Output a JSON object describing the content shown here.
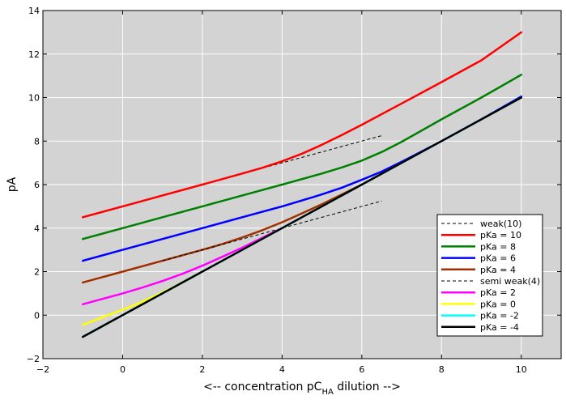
{
  "chart_data": {
    "type": "line",
    "title": "",
    "xlabel_parts": [
      "<-- concentration    pC",
      "HA",
      "   dilution -->"
    ],
    "ylabel": "pA",
    "xlim": [
      -2,
      11
    ],
    "ylim": [
      -2,
      14
    ],
    "xticks": [
      -2,
      0,
      2,
      4,
      6,
      8,
      10
    ],
    "yticks": [
      -2,
      0,
      2,
      4,
      6,
      8,
      10,
      12,
      14
    ],
    "grid": true,
    "legend_position": "lower-right",
    "colors": {
      "plot_background": "#d3d3d3",
      "grid": "#ffffff"
    },
    "series": [
      {
        "name": "weak(10)",
        "color": "#000000",
        "dashed": true,
        "width": 1,
        "x": [
          -1,
          6.5
        ],
        "y": [
          4.5,
          8.25
        ]
      },
      {
        "name": "pKa = 10",
        "color": "#ff0000",
        "dashed": false,
        "width": 2.5,
        "x": [
          -1,
          0,
          1,
          2,
          3,
          3.5,
          4,
          4.5,
          5,
          5.5,
          6,
          7,
          8,
          9,
          10
        ],
        "y": [
          4.5,
          5.0,
          5.5,
          6.0,
          6.51,
          6.77,
          7.07,
          7.42,
          7.83,
          8.28,
          8.75,
          9.73,
          10.71,
          11.71,
          13.0
        ]
      },
      {
        "name": "pKa = 8",
        "color": "#008000",
        "dashed": false,
        "width": 2.5,
        "x": [
          -1,
          0,
          1,
          2,
          3,
          4,
          5,
          5.5,
          6,
          6.5,
          7,
          8,
          9,
          10
        ],
        "y": [
          3.5,
          4.0,
          4.5,
          5.0,
          5.5,
          6.0,
          6.51,
          6.79,
          7.1,
          7.5,
          7.97,
          9.0,
          10.0,
          11.05
        ]
      },
      {
        "name": "pKa = 6",
        "color": "#0000ff",
        "dashed": false,
        "width": 2.5,
        "x": [
          -1,
          0,
          1,
          2,
          3,
          4,
          4.5,
          5,
          5.5,
          6,
          6.5,
          7,
          8,
          9,
          10
        ],
        "y": [
          2.5,
          3.0,
          3.5,
          4.0,
          4.5,
          5.0,
          5.27,
          5.55,
          5.86,
          6.22,
          6.6,
          7.05,
          8.0,
          9.0,
          10.05
        ]
      },
      {
        "name": "pKa = 4",
        "color": "#a03000",
        "dashed": false,
        "width": 2.5,
        "x": [
          -1,
          0,
          1,
          2,
          2.5,
          3,
          3.5,
          4,
          4.5,
          5,
          5.5,
          6
        ],
        "y": [
          1.5,
          2.0,
          2.5,
          3.0,
          3.27,
          3.57,
          3.9,
          4.27,
          4.68,
          5.1,
          5.55,
          6.0
        ]
      },
      {
        "name": "semi weak(4)",
        "color": "#000000",
        "dashed": true,
        "width": 1,
        "x": [
          1,
          6.5
        ],
        "y": [
          2.5,
          5.25
        ]
      },
      {
        "name": "pKa = 2",
        "color": "#ff00ff",
        "dashed": false,
        "width": 2.5,
        "x": [
          -1,
          0,
          0.5,
          1,
          1.5,
          2,
          2.5,
          3,
          3.5,
          4
        ],
        "y": [
          0.5,
          1.0,
          1.27,
          1.57,
          1.9,
          2.27,
          2.68,
          3.1,
          3.55,
          4.0
        ]
      },
      {
        "name": "pKa = 0",
        "color": "#ffff00",
        "dashed": false,
        "width": 2.5,
        "x": [
          -1,
          -0.5,
          0,
          0.5,
          1,
          1.5,
          2
        ],
        "y": [
          -0.45,
          -0.1,
          0.25,
          0.62,
          1.05,
          1.5,
          2.0
        ]
      },
      {
        "name": "pKa = -2",
        "color": "#00ffff",
        "dashed": false,
        "width": 2.5,
        "x": [
          -1,
          10
        ],
        "y": [
          -1.0,
          10.0
        ]
      },
      {
        "name": "pKa = -4",
        "color": "#000000",
        "dashed": false,
        "width": 2.5,
        "x": [
          -1,
          10
        ],
        "y": [
          -1.0,
          10.0
        ]
      }
    ]
  }
}
